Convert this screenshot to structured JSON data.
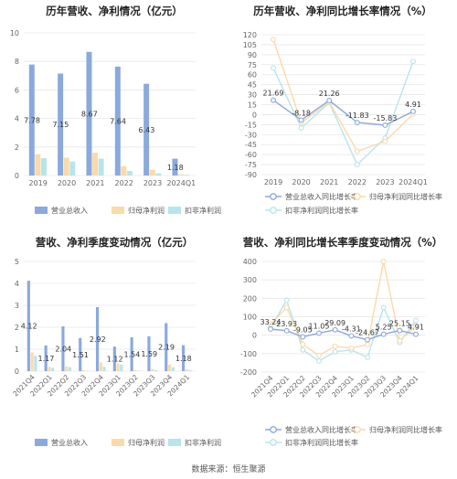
{
  "source": "数据来源：恒生聚源",
  "colors": {
    "revenue": "#8aa9dc",
    "net_profit": "#fcd9a8",
    "deducted_profit": "#b6e5ec",
    "grid": "#e6e6e6",
    "axis_text": "#666666",
    "label_text": "#333333"
  },
  "chart_data": [
    {
      "id": "annual-amount",
      "type": "bar",
      "title": "历年营收、净利情况（亿元）",
      "categories": [
        "2019",
        "2020",
        "2021",
        "2022",
        "2023",
        "2024Q1"
      ],
      "ylim": [
        0,
        10
      ],
      "yticks": [
        0,
        2,
        4,
        6,
        8,
        10
      ],
      "series": [
        {
          "name": "营业总收入",
          "values": [
            7.78,
            7.15,
            8.67,
            7.64,
            6.43,
            1.18
          ],
          "labels": [
            "7.78",
            "7.15",
            "8.67",
            "7.64",
            "6.43",
            "1.18"
          ]
        },
        {
          "name": "归母净利润",
          "values": [
            1.5,
            1.25,
            1.6,
            0.65,
            0.4,
            0.08
          ]
        },
        {
          "name": "扣非净利润",
          "values": [
            1.22,
            0.98,
            1.18,
            0.32,
            0.15,
            0.05
          ]
        }
      ]
    },
    {
      "id": "annual-growth",
      "type": "line",
      "title": "历年营收、净利同比增长率情况（%）",
      "categories": [
        "2019",
        "2020",
        "2021",
        "2022",
        "2023",
        "2024Q1"
      ],
      "ylim": [
        -90,
        120
      ],
      "yticks": [
        -90,
        -75,
        -60,
        -45,
        -30,
        -15,
        0,
        15,
        30,
        45,
        60,
        75,
        90,
        105,
        120
      ],
      "series": [
        {
          "name": "营业总收入同比增长率",
          "values": [
            21.69,
            -8.18,
            21.26,
            -11.83,
            -15.83,
            4.91
          ],
          "labels": [
            "21.69",
            "-8.18",
            "21.26",
            "-11.83",
            "-15.83",
            "4.91"
          ]
        },
        {
          "name": "归母净利润同比增长率",
          "values": [
            113,
            -12,
            19,
            -55,
            -40,
            1
          ]
        },
        {
          "name": "扣非净利润同比增长率",
          "values": [
            70,
            -20,
            18,
            -75,
            -35,
            80
          ]
        }
      ]
    },
    {
      "id": "quarterly-amount",
      "type": "bar",
      "title": "营收、净利季度变动情况（亿元）",
      "categories": [
        "2021Q4",
        "2022Q1",
        "2022Q2",
        "2022Q3",
        "2022Q4",
        "2023Q1",
        "2023Q2",
        "2023Q3",
        "2023Q4",
        "2024Q1"
      ],
      "ylim": [
        0,
        5
      ],
      "yticks": [
        0,
        1,
        2,
        3,
        4,
        5
      ],
      "series": [
        {
          "name": "营业总收入",
          "values": [
            4.12,
            1.17,
            2.04,
            1.51,
            2.92,
            1.12,
            1.54,
            1.59,
            2.19,
            1.18
          ],
          "labels": [
            "4.12",
            "1.17",
            "2.04",
            "1.51",
            "2.92",
            "1.12",
            "1.54",
            "1.59",
            "2.19",
            "1.18"
          ]
        },
        {
          "name": "归母净利润",
          "values": [
            0.85,
            0.2,
            0.22,
            0.05,
            0.4,
            0.35,
            0.05,
            0.1,
            0.3,
            0.08
          ]
        },
        {
          "name": "扣非净利润",
          "values": [
            0.7,
            0.15,
            0.18,
            0.02,
            0.2,
            0.3,
            0.02,
            0.05,
            0.18,
            0.05
          ]
        }
      ]
    },
    {
      "id": "quarterly-growth",
      "type": "line",
      "title": "营收、净利同比增长率季度变动情况（%）",
      "categories": [
        "2021Q4",
        "2022Q1",
        "2022Q2",
        "2022Q3",
        "2022Q4",
        "2023Q1",
        "2023Q2",
        "2023Q3",
        "2023Q4",
        "2024Q1"
      ],
      "ylim": [
        -200,
        400
      ],
      "yticks": [
        -200,
        -100,
        0,
        100,
        200,
        300,
        400
      ],
      "series": [
        {
          "name": "营业总收入同比增长率",
          "values": [
            33.24,
            23.93,
            -9.05,
            11.05,
            29.09,
            -4.31,
            -24.67,
            5.25,
            25.15,
            4.91
          ],
          "labels": [
            "33.24",
            "23.93",
            "-9.05",
            "11.05",
            "29.09",
            "-4.31",
            "-24.67",
            "5.25",
            "25.15",
            "4.91"
          ]
        },
        {
          "name": "归母净利润同比增长率",
          "values": [
            60,
            150,
            -50,
            -110,
            -60,
            -70,
            -50,
            400,
            -30,
            50
          ]
        },
        {
          "name": "扣非净利润同比增长率",
          "values": [
            40,
            190,
            -80,
            -140,
            -90,
            -80,
            -120,
            150,
            -40,
            80
          ]
        }
      ]
    }
  ]
}
